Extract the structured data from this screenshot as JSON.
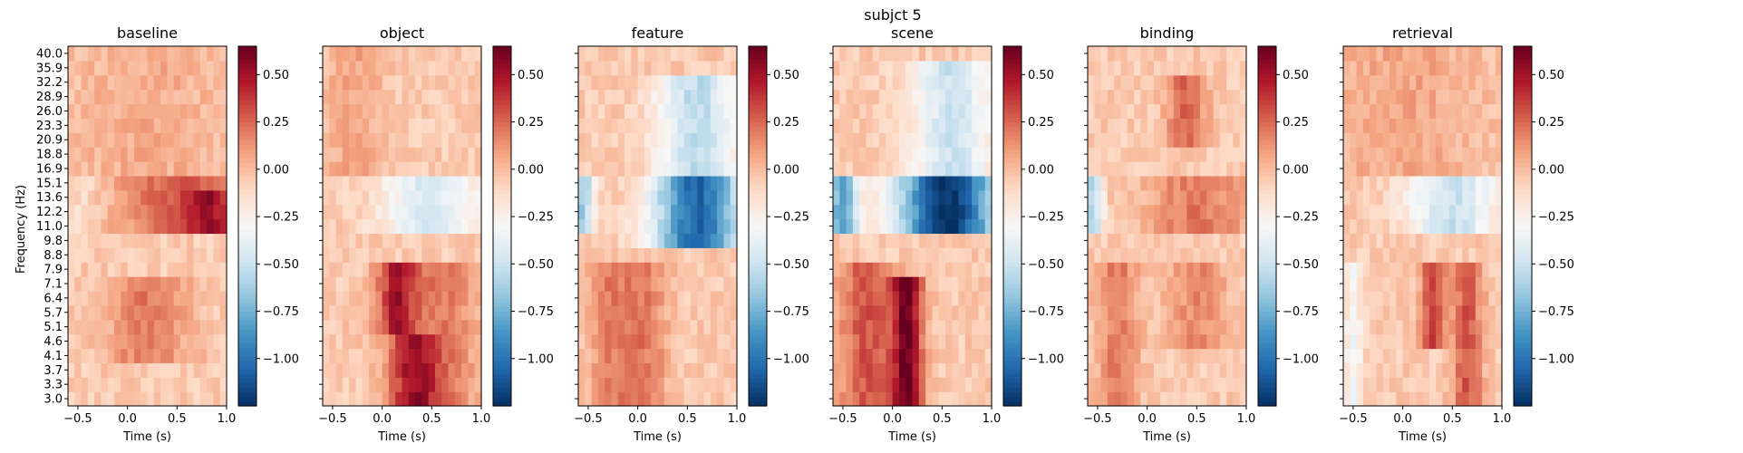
{
  "chart_data": {
    "type": "heatmap",
    "title": "subjct 5",
    "colormap": "RdBu_r",
    "ylabel": "Frequency (Hz)",
    "xlabel": "Time (s)",
    "xlim": [
      -0.6,
      1.0
    ],
    "xticks": [
      -0.5,
      0.0,
      0.5,
      1.0
    ],
    "xtick_labels": [
      "−0.5",
      "0.0",
      "0.5",
      "1.0"
    ],
    "frequencies": [
      3.0,
      3.3,
      3.7,
      4.1,
      4.6,
      5.1,
      5.7,
      6.4,
      7.1,
      7.9,
      8.8,
      9.8,
      11.0,
      12.2,
      13.6,
      15.1,
      16.9,
      18.8,
      20.9,
      23.3,
      26.0,
      28.9,
      32.2,
      35.9,
      40.0
    ],
    "ytick_labels": [
      "3.0",
      "3.3",
      "3.7",
      "4.1",
      "4.6",
      "5.1",
      "5.7",
      "6.4",
      "7.1",
      "7.9",
      "8.8",
      "9.8",
      "11.0",
      "12.2",
      "13.6",
      "15.1",
      "16.9",
      "18.8",
      "20.9",
      "23.3",
      "26.0",
      "28.9",
      "32.2",
      "35.9",
      "40.0"
    ],
    "colorbar": {
      "vmin": -1.25,
      "vmax": 0.65,
      "ticks": [
        0.5,
        0.25,
        0.0,
        -0.25,
        -0.5,
        -0.75,
        -1.0
      ],
      "tick_labels": [
        "0.50",
        "0.25",
        "0.00",
        "−0.25",
        "−0.50",
        "−0.75",
        "−1.00"
      ]
    },
    "panels": [
      {
        "title": "baseline",
        "features": [
          {
            "t": 0.55,
            "f": [
              12,
              15
            ],
            "v": 0.35,
            "w": 0.6
          },
          {
            "t": 0.85,
            "f": [
              12,
              14
            ],
            "v": 0.3,
            "w": 0.2
          },
          {
            "t": 0.2,
            "f": [
              3,
              8
            ],
            "v": 0.25,
            "w": 0.4
          },
          {
            "t": -0.45,
            "f": [
              12,
              15
            ],
            "v": -0.1,
            "w": 0.15
          },
          {
            "t": 0.2,
            "f": [
              16,
              24
            ],
            "v": 0.1,
            "w": 0.8
          }
        ]
      },
      {
        "title": "object",
        "features": [
          {
            "t": 0.5,
            "f": [
              12,
              15
            ],
            "v": -0.4,
            "w": 0.5
          },
          {
            "t": 0.15,
            "f": [
              5,
              9
            ],
            "v": 0.5,
            "w": 0.2
          },
          {
            "t": 0.3,
            "f": [
              0,
              4
            ],
            "v": 0.45,
            "w": 0.25
          },
          {
            "t": 0.6,
            "f": [
              0,
              9
            ],
            "v": 0.25,
            "w": 0.35
          },
          {
            "t": -0.3,
            "f": [
              16,
              24
            ],
            "v": 0.12,
            "w": 0.3
          }
        ]
      },
      {
        "title": "feature",
        "features": [
          {
            "t": 0.6,
            "f": [
              11,
              15
            ],
            "v": -1.0,
            "w": 0.45
          },
          {
            "t": 0.6,
            "f": [
              16,
              22
            ],
            "v": -0.5,
            "w": 0.4
          },
          {
            "t": -0.55,
            "f": [
              12,
              15
            ],
            "v": -0.6,
            "w": 0.1
          },
          {
            "t": 0.05,
            "f": [
              0,
              9
            ],
            "v": 0.25,
            "w": 0.25
          },
          {
            "t": -0.3,
            "f": [
              0,
              9
            ],
            "v": 0.2,
            "w": 0.2
          }
        ]
      },
      {
        "title": "scene",
        "features": [
          {
            "t": 0.55,
            "f": [
              12,
              15
            ],
            "v": -1.2,
            "w": 0.5
          },
          {
            "t": 0.6,
            "f": [
              16,
              23
            ],
            "v": -0.45,
            "w": 0.4
          },
          {
            "t": -0.5,
            "f": [
              12,
              15
            ],
            "v": -0.8,
            "w": 0.15
          },
          {
            "t": 0.15,
            "f": [
              0,
              8
            ],
            "v": 0.65,
            "w": 0.15
          },
          {
            "t": -0.25,
            "f": [
              0,
              9
            ],
            "v": 0.35,
            "w": 0.3
          }
        ]
      },
      {
        "title": "binding",
        "features": [
          {
            "t": 0.5,
            "f": [
              12,
              15
            ],
            "v": 0.25,
            "w": 0.5
          },
          {
            "t": -0.55,
            "f": [
              12,
              15
            ],
            "v": -0.55,
            "w": 0.1
          },
          {
            "t": 0.4,
            "f": [
              18,
              22
            ],
            "v": 0.3,
            "w": 0.2
          },
          {
            "t": -0.3,
            "f": [
              0,
              9
            ],
            "v": 0.25,
            "w": 0.2
          },
          {
            "t": 0.5,
            "f": [
              4,
              9
            ],
            "v": 0.2,
            "w": 0.3
          }
        ]
      },
      {
        "title": "retrieval",
        "features": [
          {
            "t": 0.5,
            "f": [
              12,
              15
            ],
            "v": -0.45,
            "w": 0.45
          },
          {
            "t": 0.3,
            "f": [
              4,
              9
            ],
            "v": 0.4,
            "w": 0.12
          },
          {
            "t": 0.65,
            "f": [
              0,
              9
            ],
            "v": 0.35,
            "w": 0.15
          },
          {
            "t": -0.5,
            "f": [
              0,
              9
            ],
            "v": -0.25,
            "w": 0.1
          },
          {
            "t": 0.0,
            "f": [
              16,
              24
            ],
            "v": 0.12,
            "w": 0.8
          }
        ]
      }
    ]
  }
}
